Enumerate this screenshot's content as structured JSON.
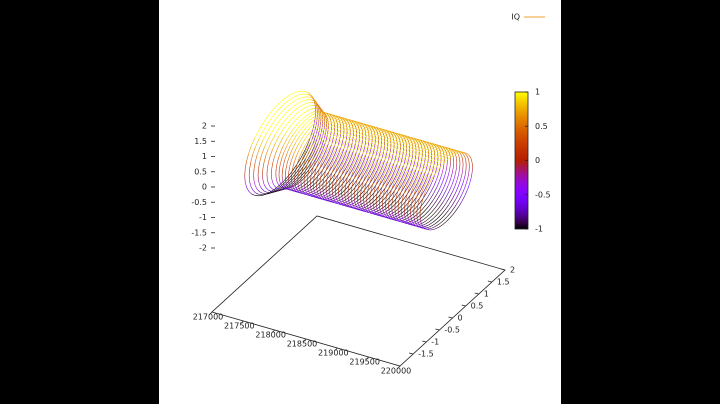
{
  "chart_data": {
    "type": "surface3d",
    "legend": "IQ",
    "legend_color": "#f0a030",
    "x": [
      217250,
      217300,
      217350,
      217400,
      217450,
      217500,
      217550,
      217600,
      217650,
      217700,
      217750,
      217800,
      217850,
      217900,
      217950,
      218000,
      218050,
      218100,
      218150,
      218200,
      218250,
      218300,
      218350,
      218400,
      218450,
      218500,
      218550,
      218600,
      218650,
      218700,
      218750,
      218800,
      218850,
      218900,
      218950,
      219000,
      219050,
      219100,
      219150,
      219200,
      219250,
      219300,
      219350,
      219400,
      219450,
      219500,
      219550,
      219600,
      219650,
      219700,
      219750,
      219800,
      219850,
      219900
    ],
    "radius": [
      1.35,
      1.3,
      1.25,
      1.2,
      1.15,
      1.1,
      1.05,
      1,
      1,
      1,
      1,
      1,
      1,
      1,
      1,
      1,
      1,
      1,
      1,
      1,
      1,
      1,
      1,
      1,
      1,
      1,
      1,
      1,
      1,
      1,
      1,
      1,
      1,
      1,
      1,
      1,
      1,
      1,
      1,
      1,
      1,
      1,
      1,
      1,
      1,
      1,
      1,
      1,
      1,
      1,
      1,
      1,
      1,
      1
    ],
    "xlim": [
      217000,
      220000
    ],
    "xticks": [
      217000,
      217500,
      218000,
      218500,
      219000,
      219500,
      220000
    ],
    "ylim": [
      -2,
      2
    ],
    "yticks": [
      -1.5,
      -1,
      -0.5,
      0,
      0.5,
      1,
      1.5,
      2
    ],
    "zlim": [
      -2,
      2
    ],
    "zticks": [
      -2,
      -1.5,
      -1,
      -0.5,
      0,
      0.5,
      1,
      1.5,
      2
    ],
    "cblim": [
      -1,
      1
    ],
    "cbticks": [
      -1,
      -0.5,
      0,
      0.5,
      1
    ]
  }
}
